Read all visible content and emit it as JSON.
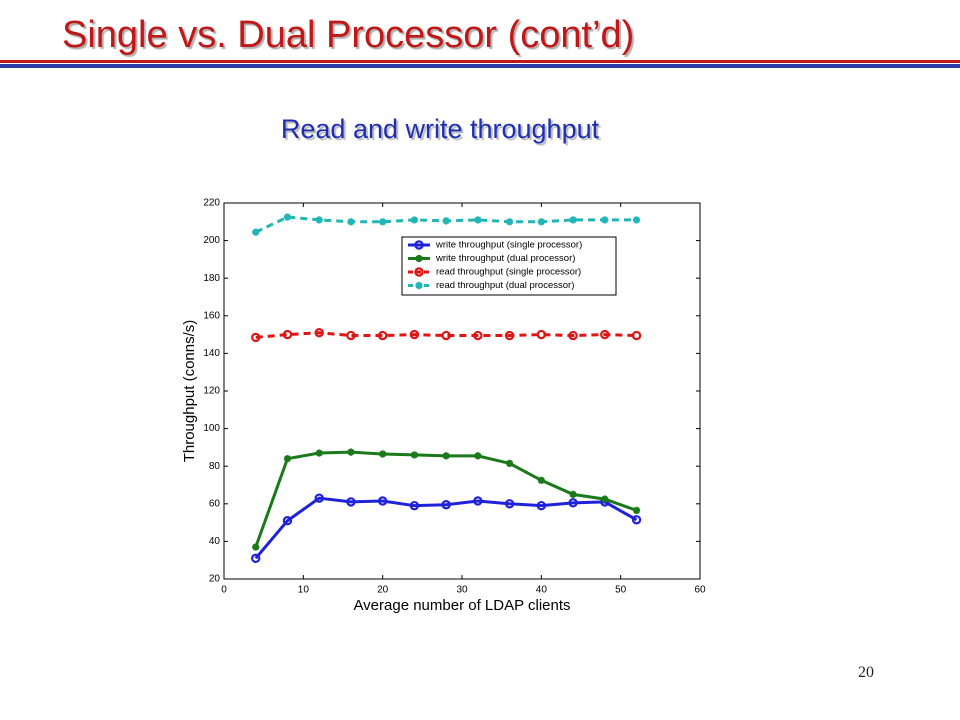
{
  "slide": {
    "title": "Single vs. Dual Processor (cont’d)",
    "subtitle": "Read and write throughput",
    "page_number": 20
  },
  "chart_data": {
    "type": "line",
    "x_label": "Average number of LDAP clients",
    "y_label": "Throughput (conns/s)",
    "x": [
      4,
      8,
      12,
      16,
      20,
      24,
      28,
      32,
      36,
      40,
      44,
      48,
      52
    ],
    "series": [
      {
        "name": "write throughput (single processor)",
        "color": "#1f22d8",
        "marker": "o",
        "linestyle": "solid",
        "values": [
          31,
          51,
          63,
          61,
          61.5,
          59,
          59.5,
          61.5,
          60,
          59,
          60.5,
          61,
          51.5
        ]
      },
      {
        "name": "write throughput (dual processor)",
        "color": "#1a7a1a",
        "marker": "*",
        "linestyle": "solid",
        "values": [
          37,
          84,
          87,
          87.5,
          86.5,
          86,
          85.5,
          85.5,
          81.5,
          72.5,
          65,
          62.5,
          56.5
        ]
      },
      {
        "name": "read throughput (single processor)",
        "color": "#e01414",
        "marker": "o",
        "linestyle": "dashed",
        "values": [
          148.5,
          150,
          151,
          149.5,
          149.5,
          150,
          149.5,
          149.5,
          149.5,
          150,
          149.5,
          150,
          149.5
        ]
      },
      {
        "name": "read throughput (dual processor)",
        "color": "#22b5b5",
        "marker": "*",
        "linestyle": "dashed",
        "values": [
          204.5,
          212.5,
          211,
          210,
          210,
          211,
          210.5,
          211,
          210,
          210,
          211,
          211,
          211
        ]
      }
    ],
    "xlim": [
      0,
      60
    ],
    "xticks": [
      0,
      10,
      20,
      30,
      40,
      50,
      60
    ],
    "ylim": [
      20,
      220
    ],
    "yticks": [
      20,
      40,
      60,
      80,
      100,
      120,
      140,
      160,
      180,
      200,
      220
    ],
    "grid": false,
    "legend": "upper right"
  }
}
